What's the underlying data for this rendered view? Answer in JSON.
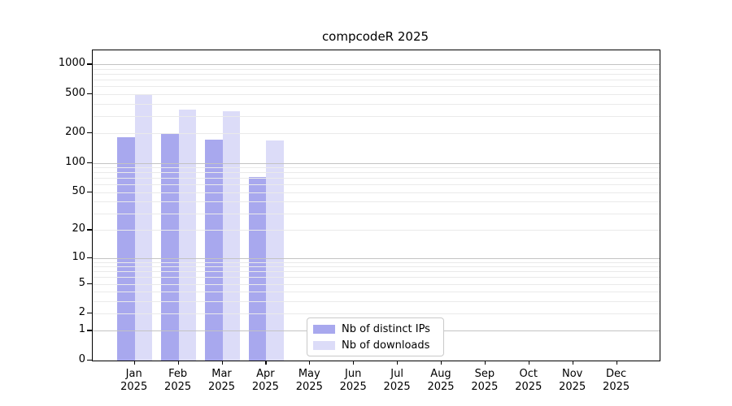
{
  "chart_data": {
    "type": "bar",
    "title": "compcodeR 2025",
    "categories": [
      "Jan",
      "Feb",
      "Mar",
      "Apr",
      "May",
      "Jun",
      "Jul",
      "Aug",
      "Sep",
      "Oct",
      "Nov",
      "Dec"
    ],
    "year_label": "2025",
    "series": [
      {
        "name": "Nb of distinct IPs",
        "color": "#a8a8ee",
        "values": [
          183,
          200,
          172,
          71,
          0,
          0,
          0,
          0,
          0,
          0,
          0,
          0
        ]
      },
      {
        "name": "Nb of downloads",
        "color": "#dcdcf8",
        "values": [
          491,
          350,
          337,
          170,
          0,
          0,
          0,
          0,
          0,
          0,
          0,
          0
        ]
      }
    ],
    "y_axis": {
      "scale": "log1p",
      "tick_labels": [
        "0",
        "1",
        "2",
        "5",
        "10",
        "20",
        "50",
        "100",
        "200",
        "500",
        "1000"
      ],
      "tick_values": [
        0,
        1,
        2,
        5,
        10,
        20,
        50,
        100,
        200,
        500,
        1000
      ],
      "range_top_value": 1360
    },
    "grid": {
      "on": true,
      "major_values": [
        1,
        10,
        100,
        1000
      ],
      "minor_values": [
        2,
        3,
        4,
        5,
        6,
        7,
        8,
        9,
        20,
        30,
        40,
        50,
        60,
        70,
        80,
        90,
        200,
        300,
        400,
        500,
        600,
        700,
        800,
        900
      ]
    },
    "legend": {
      "position": "lower center inside"
    },
    "colors": {
      "frame": "#000000",
      "grid_major": "#c3c3c3",
      "grid_minor": "#eaeaea"
    }
  }
}
